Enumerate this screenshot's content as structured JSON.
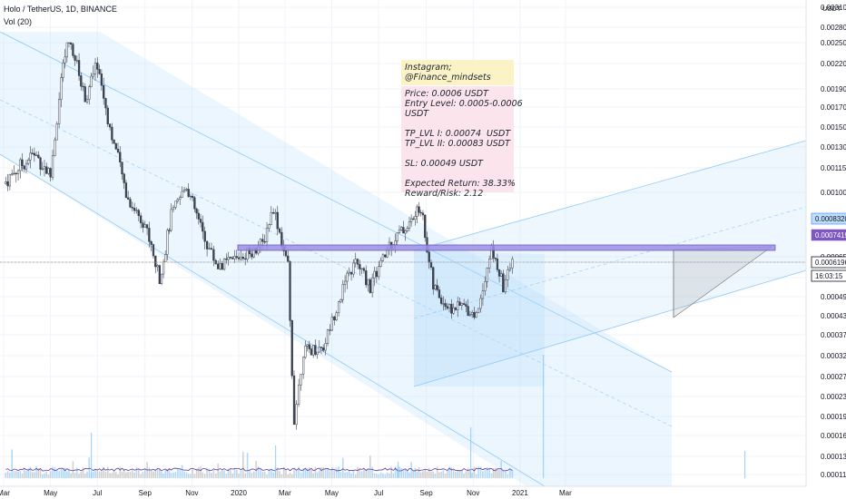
{
  "header": {
    "symbol_line": "Holo / TetherUS, 1D, BINANCE",
    "volume_label": "Vol (20)"
  },
  "notes": {
    "instagram": [
      "Instagram;",
      "@Finance_mindsets"
    ],
    "trade": [
      "Price: 0.0006 USDT",
      "Entry Level: 0.0005-0.0006",
      "USDT",
      "",
      "TP_LVL I: 0.00074  USDT",
      "TP_LVL II: 0.00083 USDT",
      "",
      "SL: 0.00049 USDT",
      "",
      "Expected Return: 38.33%",
      "Reward/Risk: 2.12"
    ]
  },
  "colors": {
    "up_candle": "#26a69a",
    "down_candle": "#ef5350",
    "channel_fill": "#bbdefb",
    "channel_line": "#90caf9",
    "resistance_band": "#9c8fe0",
    "volume_ma": "#5c3b9e",
    "instagram_note_bg": "#fbf3c6",
    "trade_note_bg": "#fce4ec",
    "axis_text": "#131722"
  },
  "chart_data": {
    "type": "candlestick",
    "symbol": "Holo / TetherUS",
    "interval": "1D",
    "exchange": "BINANCE",
    "yscale": "log",
    "ylim": [
      0.000111,
      0.00031
    ],
    "y_ticks": [
      "0.0031000",
      "0.0028000",
      "0.0025000",
      "0.0022000",
      "0.0019000",
      "0.0017000",
      "0.0015000",
      "0.0013000",
      "0.0011500",
      "0.0010000",
      "0.0008320",
      "0.0007419",
      "0.0006500",
      "0.0006196",
      "0.0005500",
      "0.0004900",
      "0.0004300",
      "0.0003700",
      "0.0003200",
      "0.0002700",
      "0.0002300",
      "0.0001950",
      "0.0001650",
      "0.0001350",
      "0.0001110"
    ],
    "axis_unit": "USDT",
    "x_ticks": [
      "Mar",
      "May",
      "Jul",
      "Sep",
      "Nov",
      "2020",
      "Mar",
      "May",
      "Jul",
      "Sep",
      "Nov",
      "2021",
      "Mar"
    ],
    "price_labels": [
      {
        "value": "0.0008320"
      },
      {
        "value": "0.0007419"
      },
      {
        "value": "0.0006196"
      },
      {
        "value": "16:03:15"
      }
    ],
    "approx_close_path": [
      {
        "date": "2019-03-01",
        "close": 0.00105
      },
      {
        "date": "2019-03-20",
        "close": 0.00115
      },
      {
        "date": "2019-04-10",
        "close": 0.00125
      },
      {
        "date": "2019-05-01",
        "close": 0.0011
      },
      {
        "date": "2019-05-15",
        "close": 0.002
      },
      {
        "date": "2019-05-25",
        "close": 0.0026
      },
      {
        "date": "2019-06-15",
        "close": 0.0018
      },
      {
        "date": "2019-07-01",
        "close": 0.0022
      },
      {
        "date": "2019-07-20",
        "close": 0.0014
      },
      {
        "date": "2019-08-10",
        "close": 0.00095
      },
      {
        "date": "2019-09-01",
        "close": 0.0008
      },
      {
        "date": "2019-09-20",
        "close": 0.00055
      },
      {
        "date": "2019-10-05",
        "close": 0.00085
      },
      {
        "date": "2019-10-25",
        "close": 0.00105
      },
      {
        "date": "2019-11-15",
        "close": 0.00075
      },
      {
        "date": "2019-12-05",
        "close": 0.0006
      },
      {
        "date": "2020-01-01",
        "close": 0.00065
      },
      {
        "date": "2020-02-01",
        "close": 0.0007
      },
      {
        "date": "2020-02-15",
        "close": 0.0009
      },
      {
        "date": "2020-03-05",
        "close": 0.0006
      },
      {
        "date": "2020-03-13",
        "close": 0.00019
      },
      {
        "date": "2020-03-25",
        "close": 0.00033
      },
      {
        "date": "2020-04-20",
        "close": 0.00034
      },
      {
        "date": "2020-05-10",
        "close": 0.00048
      },
      {
        "date": "2020-06-01",
        "close": 0.00062
      },
      {
        "date": "2020-06-20",
        "close": 0.00052
      },
      {
        "date": "2020-07-15",
        "close": 0.0007
      },
      {
        "date": "2020-08-10",
        "close": 0.0008
      },
      {
        "date": "2020-08-25",
        "close": 0.0009
      },
      {
        "date": "2020-09-10",
        "close": 0.00052
      },
      {
        "date": "2020-10-01",
        "close": 0.00045
      },
      {
        "date": "2020-10-20",
        "close": 0.00046
      },
      {
        "date": "2020-11-05",
        "close": 0.00043
      },
      {
        "date": "2020-11-25",
        "close": 0.00068
      },
      {
        "date": "2020-12-10",
        "close": 0.00052
      },
      {
        "date": "2020-12-22",
        "close": 0.00062
      }
    ],
    "resistance_zone": [
      0.00062,
      0.00066
    ],
    "volume_series_name": "Vol (20)",
    "grid": true
  }
}
